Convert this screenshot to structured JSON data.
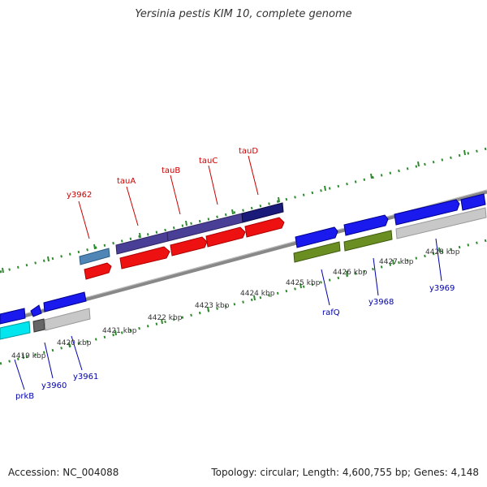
{
  "title": "Yersinia pestis KIM 10, complete genome",
  "accession_text": "Accession: NC_004088",
  "summary_text": "Topology: circular; Length: 4,600,755 bp; Genes: 4,148",
  "ticks": [
    "4419 kbp",
    "4420 kbp",
    "4421 kbp",
    "4422 kbp",
    "4423 kbp",
    "4424 kbp",
    "4425 kbp",
    "4426 kbp",
    "4427 kbp",
    "4428 kbp"
  ],
  "upper_labels": [
    "y3962",
    "tauA",
    "tauB",
    "tauC",
    "tauD"
  ],
  "lower_labels": [
    "prkB",
    "y3960",
    "y3961",
    "rafQ",
    "y3968",
    "y3969"
  ],
  "colors": {
    "upper_label": "#cc0000",
    "lower_label": "#0000aa",
    "backbone": "#888888",
    "dots": "#2e8b2e",
    "red": "#ee1111",
    "blue": "#1a1aee",
    "navy": "#1a1a7a",
    "purple": "#4a3f96",
    "steel": "#4f86b6",
    "olive": "#6b8e23",
    "cyan": "#00e5ee",
    "gray": "#c8c8c8",
    "darkgray": "#666666"
  }
}
